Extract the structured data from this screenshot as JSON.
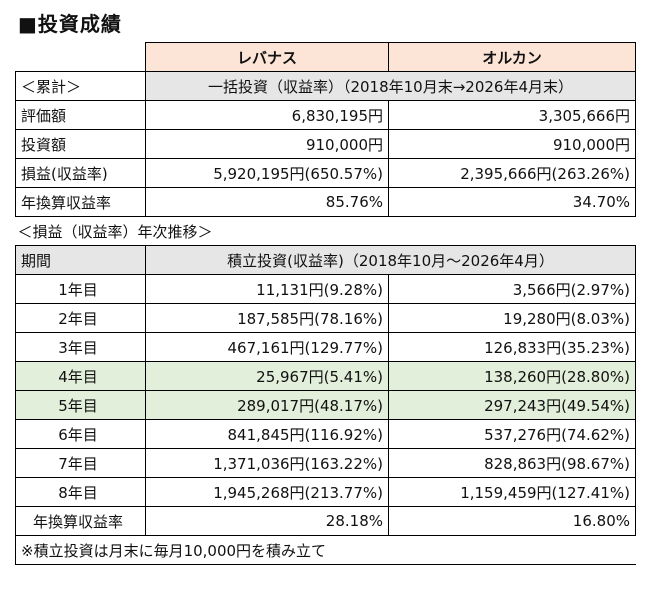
{
  "title": "■投資成績",
  "columns": [
    "レバナス",
    "オルカン"
  ],
  "summary": {
    "label": "＜累計＞",
    "period": "一括投資（収益率）（2018年10月末→2026年4月末）",
    "rows": [
      {
        "label": "評価額",
        "values": [
          "6,830,195円",
          "3,305,666円"
        ]
      },
      {
        "label": "投資額",
        "values": [
          "910,000円",
          "910,000円"
        ]
      },
      {
        "label": "損益(収益率)",
        "values": [
          "5,920,195円(650.57%)",
          "2,395,666円(263.26%)"
        ]
      },
      {
        "label": "年換算収益率",
        "values": [
          "85.76%",
          "34.70%"
        ]
      }
    ]
  },
  "yearly": {
    "label": "＜損益（収益率）年次推移＞",
    "head_label": "期間",
    "period": "積立投資(収益率)（2018年10月～2026年4月）",
    "rows": [
      {
        "label": "1年目",
        "values": [
          "11,131円(9.28%)",
          "3,566円(2.97%)"
        ],
        "highlight": false
      },
      {
        "label": "2年目",
        "values": [
          "187,585円(78.16%)",
          "19,280円(8.03%)"
        ],
        "highlight": false
      },
      {
        "label": "3年目",
        "values": [
          "467,161円(129.77%)",
          "126,833円(35.23%)"
        ],
        "highlight": false
      },
      {
        "label": "4年目",
        "values": [
          "25,967円(5.41%)",
          "138,260円(28.80%)"
        ],
        "highlight": true
      },
      {
        "label": "5年目",
        "values": [
          "289,017円(48.17%)",
          "297,243円(49.54%)"
        ],
        "highlight": true
      },
      {
        "label": "6年目",
        "values": [
          "841,845円(116.92%)",
          "537,276円(74.62%)"
        ],
        "highlight": false
      },
      {
        "label": "7年目",
        "values": [
          "1,371,036円(163.22%)",
          "828,863円(98.67%)"
        ],
        "highlight": false
      },
      {
        "label": "8年目",
        "values": [
          "1,945,268円(213.77%)",
          "1,159,459円(127.41%)"
        ],
        "highlight": false
      }
    ],
    "annual": {
      "label": "年換算収益率",
      "values": [
        "28.18%",
        "16.80%"
      ]
    }
  },
  "footnote": "※積立投資は月末に毎月10,000円を積み立て",
  "colors": {
    "header_bg": "#fce4d6",
    "subheader_bg": "#e7e6e6",
    "highlight_bg": "#e2efda"
  }
}
